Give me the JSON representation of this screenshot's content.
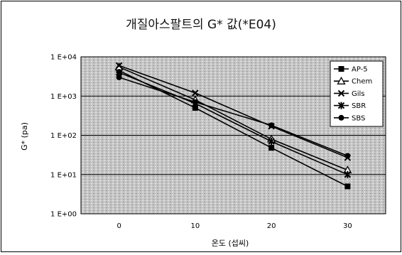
{
  "chart_data": {
    "type": "line",
    "title": "개질아스팔트의 G* 값(*E04)",
    "xlabel": "온도 (섭씨)",
    "ylabel": "G* (pa)",
    "y_scale": "log",
    "ylim": [
      1,
      10000
    ],
    "xlim": [
      -5,
      35
    ],
    "x": [
      0,
      10,
      20,
      30
    ],
    "x_tick_labels": [
      "0",
      "10",
      "20",
      "30"
    ],
    "y_tick_labels": [
      "1 E+00",
      "1 E+01",
      "1 E+02",
      "1 E+03",
      "1 E+04"
    ],
    "y_tick_values": [
      1,
      10,
      100,
      1000,
      10000
    ],
    "legend_position": "top-right",
    "series": [
      {
        "name": "AP-5",
        "marker": "square",
        "values": [
          4500,
          500,
          48,
          5
        ]
      },
      {
        "name": "Chem",
        "marker": "triangle",
        "values": [
          5500,
          800,
          80,
          13
        ]
      },
      {
        "name": "Gils",
        "marker": "x",
        "values": [
          6000,
          1200,
          170,
          27
        ]
      },
      {
        "name": "SBR",
        "marker": "star",
        "values": [
          4000,
          650,
          70,
          10
        ]
      },
      {
        "name": "SBS",
        "marker": "circle",
        "values": [
          3000,
          700,
          180,
          30
        ]
      }
    ],
    "colors": {
      "plot_bg": "#c9c9c9",
      "line": "#000000"
    }
  }
}
